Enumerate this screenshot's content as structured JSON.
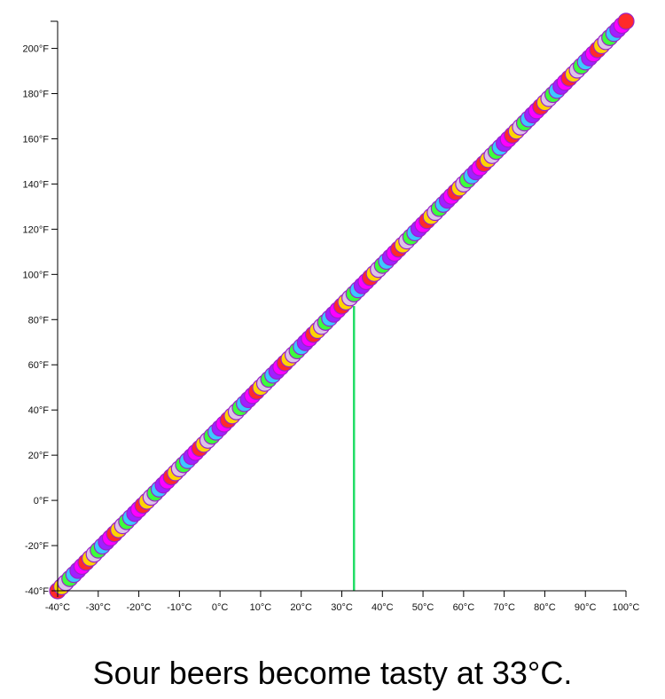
{
  "chart_data": {
    "type": "scatter",
    "title": "",
    "xlabel": "",
    "ylabel": "",
    "x_unit_suffix": "°C",
    "y_unit_suffix": "°F",
    "xlim": [
      -40,
      100
    ],
    "ylim": [
      -40,
      212
    ],
    "x_ticks": [
      -40,
      -30,
      -20,
      -10,
      0,
      10,
      20,
      30,
      40,
      50,
      60,
      70,
      80,
      90,
      100
    ],
    "y_ticks": [
      -40,
      -20,
      0,
      20,
      40,
      60,
      80,
      100,
      120,
      140,
      160,
      180,
      200
    ],
    "series": [
      {
        "x_start": -40,
        "x_end": 100,
        "x_step": 1,
        "relation": "F = C * 9 / 5 + 32",
        "point_colors": [
          "#ff2a2a",
          "#ffd400",
          "#dcc3e6",
          "#3cff3c",
          "#3cc8ff",
          "#a020ff",
          "#ff00ff"
        ]
      }
    ],
    "annotations": [
      {
        "type": "vertical-line",
        "x": 33,
        "y_from": -40,
        "y_to": 86,
        "color": "#22dd66"
      }
    ],
    "caption": "Sour beers become tasty at 33°C.",
    "grid": false,
    "legend": "none"
  }
}
